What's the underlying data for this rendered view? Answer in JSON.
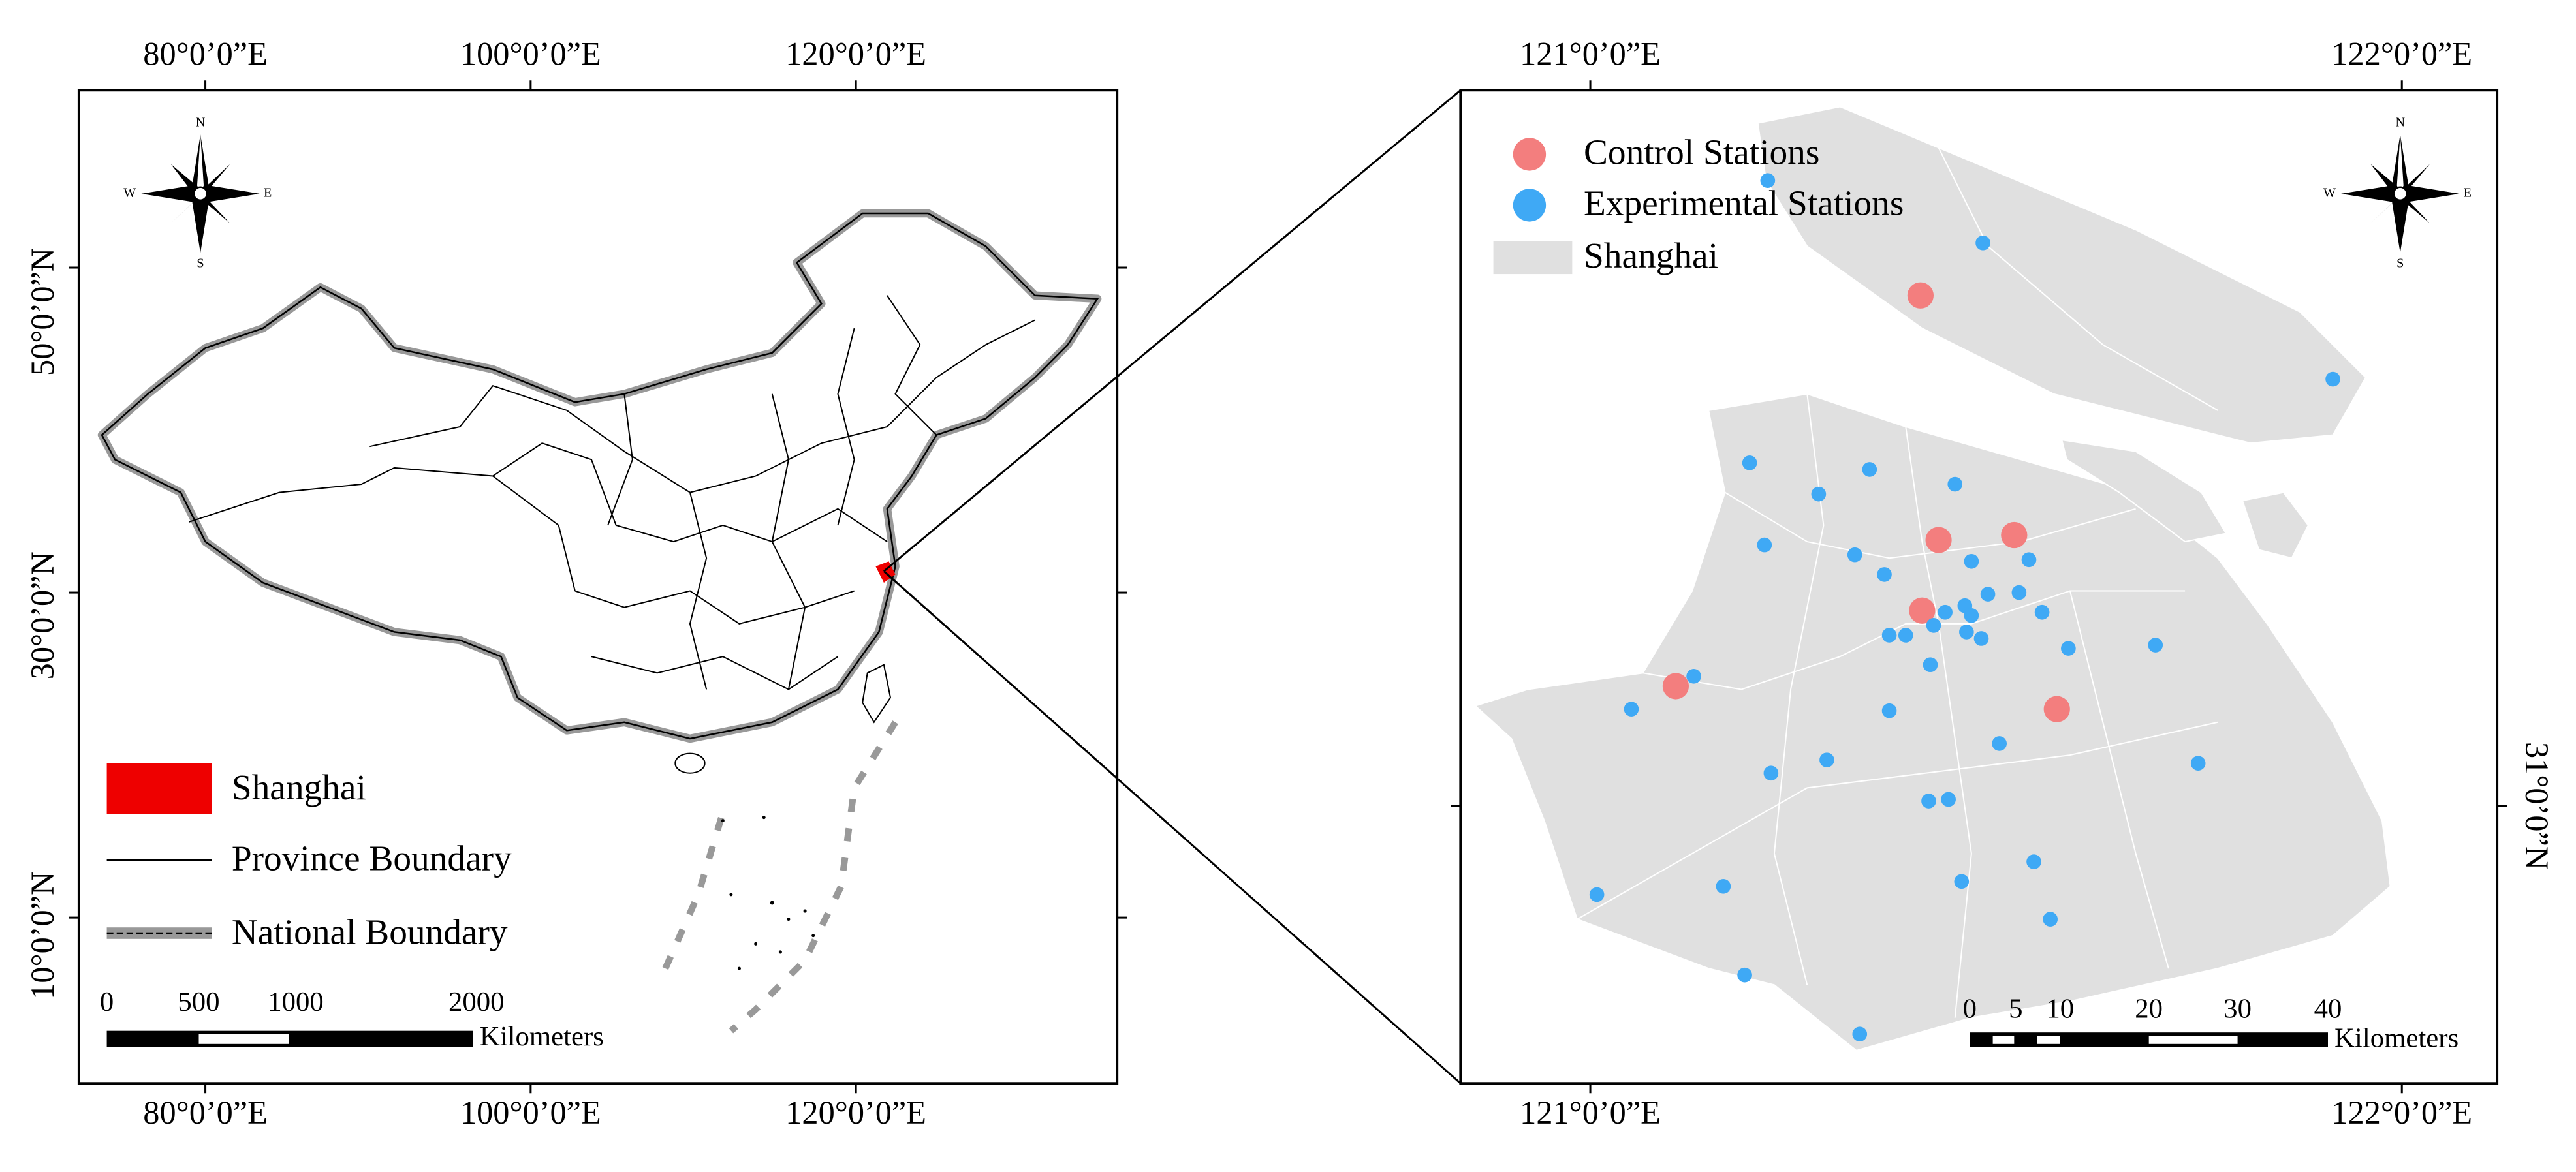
{
  "left_map": {
    "top_labels": [
      "80°0’0”E",
      "100°0’0”E",
      "120°0’0”E"
    ],
    "bottom_labels": [
      "80°0’0”E",
      "100°0’0”E",
      "120°0’0”E"
    ],
    "left_labels": [
      "50°0’0”N",
      "30°0’0”N",
      "10°0’0”N"
    ],
    "compass": {
      "n": "N",
      "s": "S",
      "e": "E",
      "w": "W"
    },
    "legend": [
      "Shanghai",
      "Province Boundary",
      "National Boundary"
    ],
    "scale": {
      "ticks": [
        "0",
        "500",
        "1000",
        "2000"
      ],
      "unit": "Kilometers"
    }
  },
  "right_map": {
    "top_labels": [
      "121°0’0”E",
      "122°0’0”E"
    ],
    "bottom_labels": [
      "121°0’0”E",
      "122°0’0”E"
    ],
    "right_labels": [
      "31°0’0”N"
    ],
    "compass": {
      "n": "N",
      "s": "S",
      "e": "E",
      "w": "W"
    },
    "legend": [
      "Control Stations",
      "Experimental Stations",
      "Shanghai"
    ],
    "scale": {
      "ticks": [
        "0",
        "5",
        "10",
        "20",
        "30",
        "40"
      ],
      "unit": "Kilometers"
    }
  }
}
